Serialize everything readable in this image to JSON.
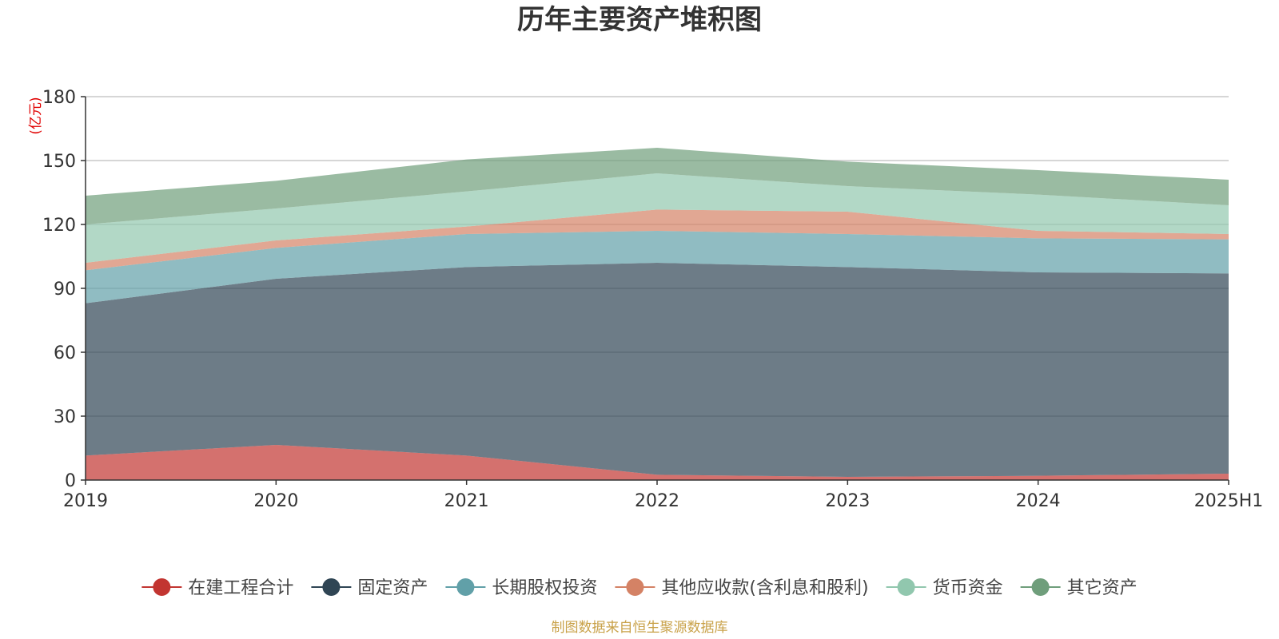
{
  "chart_data": {
    "type": "area",
    "stacked": true,
    "title": "历年主要资产堆积图",
    "y_unit": "(亿元)",
    "categories": [
      "2019",
      "2020",
      "2021",
      "2022",
      "2023",
      "2024",
      "2025H1"
    ],
    "ylim": [
      0,
      180
    ],
    "yticks": [
      "0",
      "30",
      "60",
      "90",
      "120",
      "150",
      "180"
    ],
    "grid": true,
    "legend_position": "bottom",
    "series": [
      {
        "name": "在建工程合计",
        "color": "#c23531",
        "values": [
          11.5,
          16.5,
          11.5,
          2.5,
          1.5,
          2,
          3
        ]
      },
      {
        "name": "固定资产",
        "color": "#2f4554",
        "values": [
          71.5,
          78,
          88.5,
          99.5,
          98.5,
          95.5,
          94
        ]
      },
      {
        "name": "长期股权投资",
        "color": "#61a0a8",
        "values": [
          15.5,
          14.5,
          15.5,
          15,
          15.5,
          16,
          16
        ]
      },
      {
        "name": "其他应收款(含利息和股利)",
        "color": "#d48265",
        "values": [
          3.5,
          3.5,
          3.5,
          10,
          10.5,
          3.5,
          2.5
        ]
      },
      {
        "name": "货币资金",
        "color": "#91c7ae",
        "values": [
          18,
          15,
          16.5,
          17,
          12,
          17,
          13.5
        ]
      },
      {
        "name": "其它资产",
        "color": "#6f9e7b",
        "values": [
          13.5,
          13,
          15,
          12,
          11.5,
          11.5,
          12
        ]
      }
    ],
    "source_note": "制图数据来自恒生聚源数据库"
  }
}
